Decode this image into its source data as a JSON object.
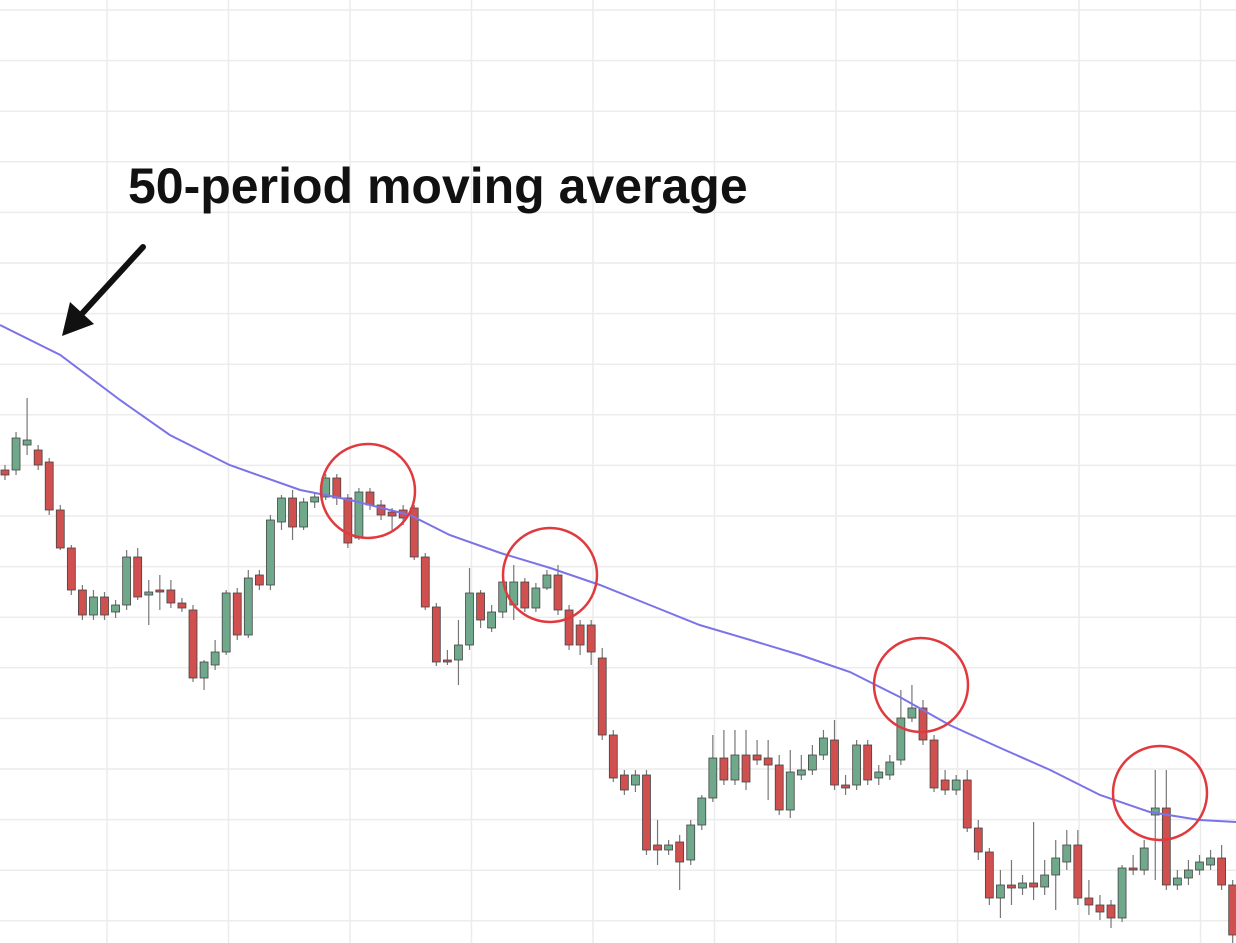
{
  "chart_data": {
    "type": "candlestick",
    "annotation": "50-period moving average",
    "xlim": [
      -0.45,
      111.3
    ],
    "ylim": [
      0,
      943
    ],
    "grid": true,
    "up_color": "#6fa88a",
    "down_color": "#d0504f",
    "open": [
      473,
      473,
      498,
      493,
      481,
      433,
      395,
      353,
      328,
      346,
      331,
      338,
      386,
      348,
      353,
      353,
      340,
      333,
      265,
      278,
      291,
      350,
      308,
      368,
      358,
      421,
      445,
      416,
      441,
      446,
      465,
      445,
      405,
      451,
      438,
      431,
      433,
      435,
      386,
      336,
      283,
      283,
      298,
      350,
      315,
      331,
      338,
      361,
      335,
      355,
      368,
      333,
      318,
      318,
      285,
      208,
      168,
      158,
      168,
      98,
      93,
      101,
      83,
      118,
      145,
      185,
      163,
      188,
      188,
      185,
      178,
      133,
      168,
      173,
      188,
      203,
      158,
      158,
      198,
      165,
      168,
      183,
      225,
      235,
      203,
      163,
      153,
      163,
      115,
      91,
      45,
      58,
      55,
      60,
      56,
      68,
      81,
      98,
      45,
      38,
      38,
      25,
      75,
      73,
      128,
      135,
      58,
      65,
      73,
      78,
      85,
      58
    ],
    "high": [
      478,
      511,
      545,
      498,
      485,
      438,
      398,
      358,
      353,
      351,
      343,
      393,
      395,
      363,
      368,
      363,
      345,
      338,
      283,
      303,
      353,
      355,
      373,
      373,
      428,
      448,
      453,
      445,
      451,
      469,
      469,
      449,
      455,
      455,
      443,
      435,
      438,
      438,
      390,
      340,
      293,
      323,
      375,
      353,
      338,
      365,
      378,
      365,
      360,
      373,
      378,
      338,
      323,
      323,
      295,
      213,
      173,
      173,
      173,
      123,
      103,
      108,
      123,
      148,
      208,
      213,
      213,
      213,
      203,
      203,
      188,
      193,
      188,
      198,
      213,
      223,
      168,
      203,
      203,
      178,
      188,
      253,
      258,
      243,
      208,
      173,
      168,
      173,
      123,
      95,
      73,
      83,
      68,
      121,
      83,
      103,
      113,
      113,
      63,
      48,
      43,
      78,
      88,
      103,
      173,
      173,
      73,
      83,
      88,
      93,
      98,
      63
    ],
    "low": [
      463,
      468,
      488,
      473,
      428,
      393,
      348,
      323,
      323,
      323,
      325,
      333,
      343,
      318,
      333,
      335,
      331,
      261,
      253,
      273,
      288,
      303,
      305,
      353,
      353,
      413,
      403,
      413,
      435,
      443,
      438,
      395,
      403,
      433,
      423,
      413,
      418,
      383,
      333,
      277,
      278,
      258,
      293,
      315,
      311,
      325,
      323,
      331,
      331,
      353,
      328,
      293,
      288,
      278,
      203,
      161,
      148,
      151,
      88,
      78,
      88,
      53,
      78,
      113,
      141,
      158,
      158,
      153,
      178,
      143,
      128,
      125,
      163,
      168,
      183,
      153,
      148,
      153,
      158,
      158,
      163,
      178,
      221,
      198,
      151,
      148,
      148,
      111,
      83,
      38,
      25,
      38,
      48,
      43,
      48,
      33,
      73,
      38,
      28,
      23,
      15,
      21,
      68,
      68,
      63,
      53,
      53,
      58,
      68,
      73,
      53,
      0
    ],
    "close": [
      468,
      505,
      503,
      478,
      433,
      395,
      353,
      328,
      346,
      328,
      338,
      386,
      346,
      351,
      351,
      340,
      335,
      265,
      281,
      291,
      350,
      308,
      365,
      358,
      423,
      445,
      416,
      441,
      446,
      465,
      445,
      400,
      451,
      438,
      428,
      427,
      425,
      386,
      336,
      281,
      281,
      298,
      350,
      323,
      331,
      361,
      361,
      335,
      355,
      368,
      333,
      298,
      298,
      291,
      208,
      165,
      153,
      168,
      93,
      93,
      98,
      81,
      118,
      145,
      185,
      163,
      188,
      161,
      183,
      178,
      133,
      171,
      173,
      188,
      205,
      158,
      155,
      198,
      163,
      171,
      181,
      225,
      235,
      203,
      155,
      153,
      163,
      115,
      91,
      45,
      58,
      55,
      60,
      56,
      68,
      85,
      98,
      45,
      38,
      31,
      25,
      75,
      73,
      95,
      135,
      58,
      65,
      73,
      81,
      85,
      58,
      8
    ],
    "ma": {
      "color": "#7b73e8",
      "x": [
        -0.45,
        5,
        10.4,
        14.9,
        20.3,
        26.7,
        31.2,
        36.6,
        40.2,
        44.8,
        49.3,
        53.8,
        58.3,
        62.8,
        67.4,
        71.9,
        76.4,
        80.9,
        85.4,
        90,
        94.5,
        99,
        103.5,
        108,
        111.3
      ],
      "values": [
        618,
        588,
        543,
        508,
        478,
        453,
        443,
        428,
        408,
        390,
        375,
        358,
        338,
        318,
        303,
        288,
        271,
        246,
        218,
        195,
        173,
        148,
        131,
        123,
        121
      ]
    }
  }
}
